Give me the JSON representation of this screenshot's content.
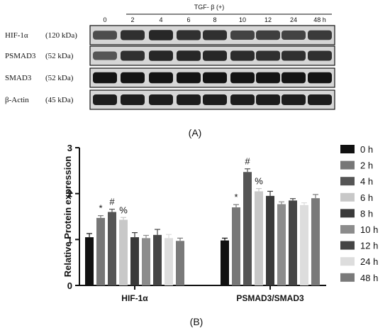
{
  "panel_a": {
    "treatment_label": "TGF- β  (+)",
    "lanes": [
      "0",
      "2",
      "4",
      "6",
      "8",
      "10",
      "12",
      "24",
      "48 h"
    ],
    "blots": [
      {
        "name": "HIF-1α",
        "size": "(120 kDa)",
        "lane_intensity": [
          0.65,
          0.8,
          0.85,
          0.8,
          0.8,
          0.7,
          0.72,
          0.7,
          0.75
        ]
      },
      {
        "name": "PSMAD3",
        "size": "(52 kDa)",
        "lane_intensity": [
          0.6,
          0.8,
          0.85,
          0.85,
          0.85,
          0.82,
          0.8,
          0.8,
          0.8
        ]
      },
      {
        "name": "SMAD3",
        "size": "(52 kDa)",
        "lane_intensity": [
          0.95,
          0.95,
          0.95,
          0.95,
          0.95,
          0.95,
          0.95,
          0.95,
          0.95
        ]
      },
      {
        "name": "β-Actin",
        "size": "(45 kDa)",
        "lane_intensity": [
          0.9,
          0.9,
          0.9,
          0.9,
          0.9,
          0.9,
          0.9,
          0.9,
          0.9
        ]
      }
    ],
    "caption": "(A)"
  },
  "chart_data": {
    "type": "bar",
    "ylabel": "Relative Protein expression",
    "ylim": [
      0,
      3
    ],
    "yticks": [
      "0",
      "1",
      "2",
      "3"
    ],
    "categories": [
      "HIF-1α",
      "PSMAD3/SMAD3"
    ],
    "legend_position": "right",
    "series": [
      {
        "name": "0 h",
        "color": "#111111",
        "values": [
          1.05,
          0.98
        ],
        "errors": [
          0.08,
          0.05
        ]
      },
      {
        "name": "2 h",
        "color": "#777777",
        "values": [
          1.47,
          1.7
        ],
        "errors": [
          0.05,
          0.06
        ]
      },
      {
        "name": "4 h",
        "color": "#555555",
        "values": [
          1.6,
          2.47
        ],
        "errors": [
          0.06,
          0.07
        ]
      },
      {
        "name": "6 h",
        "color": "#c8c8c8",
        "values": [
          1.43,
          2.05
        ],
        "errors": [
          0.05,
          0.06
        ]
      },
      {
        "name": "8 h",
        "color": "#3a3a3a",
        "values": [
          1.05,
          1.95
        ],
        "errors": [
          0.1,
          0.1
        ]
      },
      {
        "name": "10 h",
        "color": "#8c8c8c",
        "values": [
          1.03,
          1.77
        ],
        "errors": [
          0.06,
          0.05
        ]
      },
      {
        "name": "12 h",
        "color": "#454545",
        "values": [
          1.1,
          1.85
        ],
        "errors": [
          0.12,
          0.04
        ]
      },
      {
        "name": "24 h",
        "color": "#dddddd",
        "values": [
          1.03,
          1.75
        ],
        "errors": [
          0.08,
          0.05
        ]
      },
      {
        "name": "48 h",
        "color": "#7a7a7a",
        "values": [
          0.97,
          1.9
        ],
        "errors": [
          0.06,
          0.08
        ]
      }
    ],
    "annotations": [
      {
        "category": 0,
        "series": 1,
        "text": "*"
      },
      {
        "category": 0,
        "series": 2,
        "text": "#"
      },
      {
        "category": 0,
        "series": 3,
        "text": "%"
      },
      {
        "category": 1,
        "series": 1,
        "text": "*"
      },
      {
        "category": 1,
        "series": 2,
        "text": "#"
      },
      {
        "category": 1,
        "series": 3,
        "text": "%"
      }
    ],
    "caption": "(B)"
  }
}
